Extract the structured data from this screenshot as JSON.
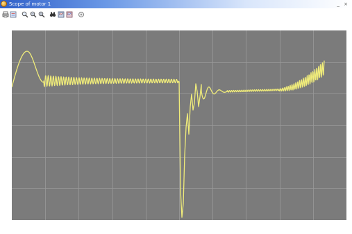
{
  "window": {
    "title": "Scope of motor 1",
    "controls": "_ ×"
  },
  "toolbar": {
    "buttons": [
      {
        "name": "print-icon"
      },
      {
        "name": "parameters-icon"
      },
      {
        "name": "zoom-icon"
      },
      {
        "name": "zoom-x-icon"
      },
      {
        "name": "zoom-y-icon"
      },
      {
        "name": "autoscale-icon"
      },
      {
        "name": "save-axes-icon"
      },
      {
        "name": "restore-axes-icon"
      },
      {
        "name": "floating-scope-icon"
      }
    ]
  },
  "scope": {
    "background_color": "#7b7b7b",
    "grid_color": "#9a9a9a",
    "trace_color": "#f0ec7a",
    "grid": true,
    "grid_divisions_x": 10,
    "grid_divisions_y": 6
  }
}
